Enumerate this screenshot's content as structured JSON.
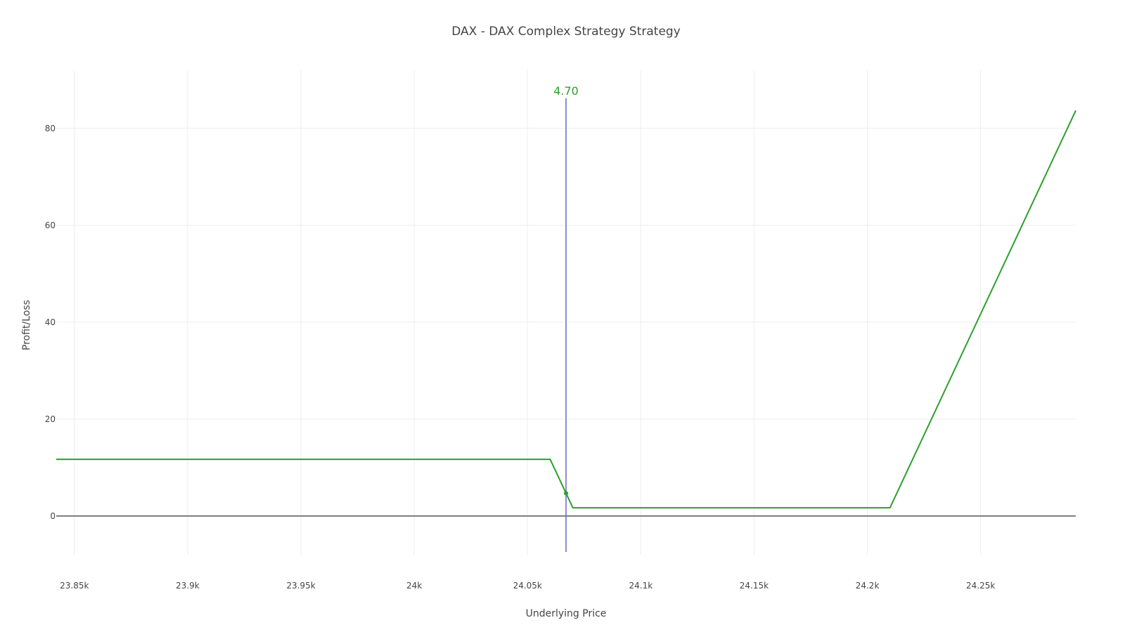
{
  "chart_data": {
    "type": "line",
    "title": "DAX - DAX Complex Strategy Strategy",
    "xlabel": "Underlying Price",
    "ylabel": "Profit/Loss",
    "xlim": [
      23842,
      24292
    ],
    "ylim": [
      -8,
      92
    ],
    "x_ticks": [
      {
        "value": 23850,
        "label": "23.85k"
      },
      {
        "value": 23900,
        "label": "23.9k"
      },
      {
        "value": 23950,
        "label": "23.95k"
      },
      {
        "value": 24000,
        "label": "24k"
      },
      {
        "value": 24050,
        "label": "24.05k"
      },
      {
        "value": 24100,
        "label": "24.1k"
      },
      {
        "value": 24150,
        "label": "24.15k"
      },
      {
        "value": 24200,
        "label": "24.2k"
      },
      {
        "value": 24250,
        "label": "24.25k"
      }
    ],
    "y_ticks": [
      {
        "value": 0,
        "label": "0"
      },
      {
        "value": 20,
        "label": "20"
      },
      {
        "value": 40,
        "label": "40"
      },
      {
        "value": 60,
        "label": "60"
      },
      {
        "value": 80,
        "label": "80"
      }
    ],
    "grid": true,
    "zero_line": true,
    "series": [
      {
        "x": [
          23842,
          24060,
          24070,
          24210,
          24292
        ],
        "y": [
          11.7,
          11.7,
          1.7,
          1.7,
          83.7
        ],
        "color": "#2ca02c"
      }
    ],
    "current_price": {
      "x": 24067,
      "y": 4.7,
      "label": "4.70",
      "line_color": "#6666cc",
      "label_color": "#2ca02c",
      "marker_color": "#2ca02c"
    }
  }
}
